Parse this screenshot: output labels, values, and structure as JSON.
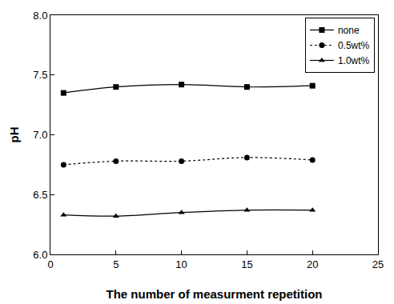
{
  "chart_data": {
    "type": "line",
    "x_label": "The number of measurment repetition",
    "y_label": "pH",
    "x": [
      1,
      5,
      10,
      15,
      20
    ],
    "series": [
      {
        "name": "none",
        "color": "#000000",
        "marker": "square",
        "line_style": "solid",
        "values": [
          7.35,
          7.4,
          7.42,
          7.4,
          7.41
        ]
      },
      {
        "name": "0.5wt%",
        "color": "#000000",
        "marker": "circle",
        "line_style": "dotted",
        "values": [
          6.75,
          6.78,
          6.78,
          6.81,
          6.79
        ]
      },
      {
        "name": "1.0wt%",
        "color": "#000000",
        "marker": "triangle",
        "line_style": "solid",
        "values": [
          6.33,
          6.32,
          6.35,
          6.37,
          6.37
        ]
      }
    ],
    "xlim": [
      0,
      25
    ],
    "xticks": [
      0,
      5,
      10,
      15,
      20,
      25
    ],
    "ylim": [
      6.0,
      8.0
    ],
    "yticks": [
      {
        "value": 6,
        "label": "6.0"
      },
      6.5,
      {
        "value": 7,
        "label": "7.0"
      },
      7.5,
      {
        "value": 8,
        "label": "8.0"
      }
    ],
    "grid": false,
    "legend": "upper right"
  }
}
